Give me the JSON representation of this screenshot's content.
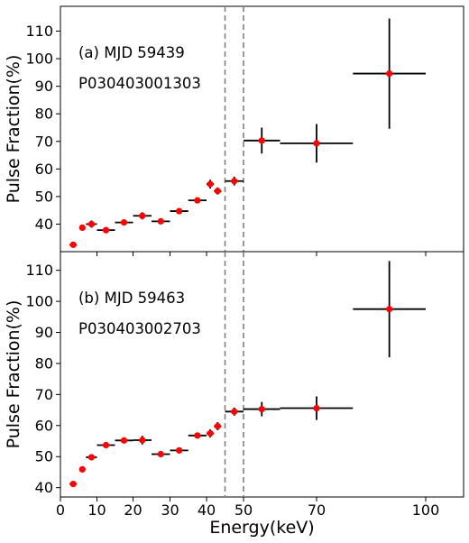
{
  "chart_data": {
    "type": "scatter",
    "xlabel": "Energy(keV)",
    "ylabel": "Pulse Fraction(%)",
    "xlim": [
      0,
      110
    ],
    "xticks": [
      0,
      10,
      20,
      30,
      40,
      50,
      70,
      100
    ],
    "x_scale": "piecewise-linear (0-60 compressed, 60-110 expanded)",
    "vlines": [
      45,
      50
    ],
    "vline_style": "dashed gray",
    "marker_color": "#ff0000",
    "errorbar_color": "#000000",
    "panels": [
      {
        "annotation": "(a) MJD 59439",
        "obsid": "P030403001303",
        "ylim": [
          30,
          119
        ],
        "yticks": [
          40,
          50,
          60,
          70,
          80,
          90,
          100,
          110
        ],
        "points": [
          {
            "x": 3.5,
            "xerr": 1.0,
            "y": 32.5,
            "yerr": 0.5
          },
          {
            "x": 6,
            "xerr": 0.8,
            "y": 38.7,
            "yerr": 0.8
          },
          {
            "x": 8.5,
            "xerr": 1.5,
            "y": 40.0,
            "yerr": 1.3
          },
          {
            "x": 12.5,
            "xerr": 2.5,
            "y": 37.8,
            "yerr": 0.8
          },
          {
            "x": 17.5,
            "xerr": 2.5,
            "y": 40.6,
            "yerr": 0.8
          },
          {
            "x": 22.5,
            "xerr": 2.5,
            "y": 43.0,
            "yerr": 1.3
          },
          {
            "x": 27.5,
            "xerr": 2.5,
            "y": 41.0,
            "yerr": 0.8
          },
          {
            "x": 32.5,
            "xerr": 2.5,
            "y": 44.7,
            "yerr": 0.8
          },
          {
            "x": 37.5,
            "xerr": 2.5,
            "y": 48.6,
            "yerr": 0.8
          },
          {
            "x": 41,
            "xerr": 1.0,
            "y": 54.5,
            "yerr": 1.6
          },
          {
            "x": 43,
            "xerr": 1.0,
            "y": 52.0,
            "yerr": 1.3
          },
          {
            "x": 47.5,
            "xerr": 2.5,
            "y": 55.6,
            "yerr": 1.6
          },
          {
            "x": 55,
            "xerr": 5,
            "y": 70.3,
            "yerr": 4.7
          },
          {
            "x": 70,
            "xerr": 10,
            "y": 69.3,
            "yerr": 7.0
          },
          {
            "x": 90,
            "xerr": 10,
            "y": 94.6,
            "yerr": 20.0
          }
        ]
      },
      {
        "annotation": "(b) MJD 59463",
        "obsid": "P030403002703",
        "ylim": [
          37,
          116
        ],
        "yticks": [
          40,
          50,
          60,
          70,
          80,
          90,
          100,
          110
        ],
        "points": [
          {
            "x": 3.5,
            "xerr": 1.0,
            "y": 41.2,
            "yerr": 0.6
          },
          {
            "x": 6,
            "xerr": 0.8,
            "y": 45.9,
            "yerr": 0.6
          },
          {
            "x": 8.5,
            "xerr": 1.5,
            "y": 49.8,
            "yerr": 1.0
          },
          {
            "x": 12.5,
            "xerr": 2.5,
            "y": 53.7,
            "yerr": 0.8
          },
          {
            "x": 17.5,
            "xerr": 2.5,
            "y": 55.2,
            "yerr": 0.8
          },
          {
            "x": 22.5,
            "xerr": 2.5,
            "y": 55.3,
            "yerr": 1.4
          },
          {
            "x": 27.5,
            "xerr": 2.5,
            "y": 50.8,
            "yerr": 0.6
          },
          {
            "x": 32.5,
            "xerr": 2.5,
            "y": 52.0,
            "yerr": 0.8
          },
          {
            "x": 37.5,
            "xerr": 2.5,
            "y": 56.8,
            "yerr": 0.8
          },
          {
            "x": 41,
            "xerr": 1.0,
            "y": 57.5,
            "yerr": 1.3
          },
          {
            "x": 43,
            "xerr": 1.0,
            "y": 59.8,
            "yerr": 1.3
          },
          {
            "x": 47.5,
            "xerr": 2.5,
            "y": 64.5,
            "yerr": 1.3
          },
          {
            "x": 55,
            "xerr": 5,
            "y": 65.3,
            "yerr": 2.3
          },
          {
            "x": 70,
            "xerr": 10,
            "y": 65.6,
            "yerr": 3.8
          },
          {
            "x": 90,
            "xerr": 10,
            "y": 97.5,
            "yerr": 15.5
          }
        ]
      }
    ]
  }
}
